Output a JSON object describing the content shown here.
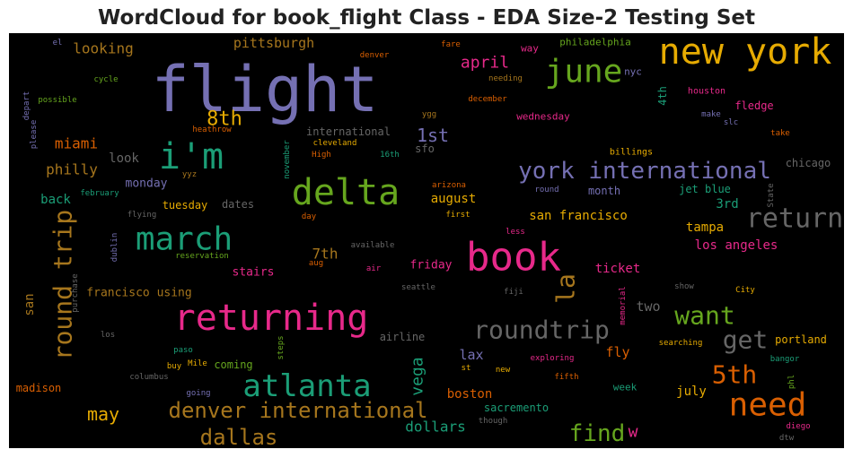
{
  "title": "WordCloud for book_flight Class - EDA Size-2 Testing Set",
  "words": [
    {
      "text": "flight",
      "color": "#7570b3"
    },
    {
      "text": "new york",
      "color": "#e6ab02"
    },
    {
      "text": "june",
      "color": "#66a61e"
    },
    {
      "text": "i'm",
      "color": "#1b9e77"
    },
    {
      "text": "8th",
      "color": "#e6ab02"
    },
    {
      "text": "delta",
      "color": "#66a61e"
    },
    {
      "text": "march",
      "color": "#1b9e77"
    },
    {
      "text": "york international",
      "color": "#7570b3"
    },
    {
      "text": "return",
      "color": "#666666"
    },
    {
      "text": "book",
      "color": "#e7298a"
    },
    {
      "text": "returning",
      "color": "#e7298a"
    },
    {
      "text": "roundtrip",
      "color": "#666666"
    },
    {
      "text": "want",
      "color": "#66a61e"
    },
    {
      "text": "get",
      "color": "#666666"
    },
    {
      "text": "atlanta",
      "color": "#1b9e77"
    },
    {
      "text": "5th",
      "color": "#d95f02"
    },
    {
      "text": "need",
      "color": "#d95f02"
    },
    {
      "text": "denver international",
      "color": "#a6761d"
    },
    {
      "text": "dallas",
      "color": "#a6761d"
    },
    {
      "text": "find",
      "color": "#66a61e"
    },
    {
      "text": "w",
      "color": "#e7298a"
    },
    {
      "text": "la",
      "color": "#a6761d"
    },
    {
      "text": "round trip",
      "color": "#a6761d"
    },
    {
      "text": "vega",
      "color": "#1b9e77"
    },
    {
      "text": "may",
      "color": "#e6ab02"
    },
    {
      "text": "1st",
      "color": "#7570b3"
    },
    {
      "text": "april",
      "color": "#e7298a"
    },
    {
      "text": "looking",
      "color": "#a6761d"
    },
    {
      "text": "pittsburgh",
      "color": "#a6761d"
    },
    {
      "text": "miami",
      "color": "#d95f02"
    },
    {
      "text": "philly",
      "color": "#a6761d"
    },
    {
      "text": "look",
      "color": "#666666"
    },
    {
      "text": "back",
      "color": "#1b9e77"
    },
    {
      "text": "monday",
      "color": "#7570b3"
    },
    {
      "text": "tuesday",
      "color": "#e6ab02"
    },
    {
      "text": "dates",
      "color": "#666666"
    },
    {
      "text": "international",
      "color": "#666666"
    },
    {
      "text": "cleveland",
      "color": "#e6ab02"
    },
    {
      "text": "sfo",
      "color": "#666666"
    },
    {
      "text": "august",
      "color": "#e6ab02"
    },
    {
      "text": "san francisco",
      "color": "#e6ab02"
    },
    {
      "text": "tampa",
      "color": "#e6ab02"
    },
    {
      "text": "3rd",
      "color": "#1b9e77"
    },
    {
      "text": "jet blue",
      "color": "#1b9e77"
    },
    {
      "text": "month",
      "color": "#7570b3"
    },
    {
      "text": "chicago",
      "color": "#666666"
    },
    {
      "text": "los angeles",
      "color": "#e7298a"
    },
    {
      "text": "7th",
      "color": "#a6761d"
    },
    {
      "text": "stairs",
      "color": "#e7298a"
    },
    {
      "text": "friday",
      "color": "#e7298a"
    },
    {
      "text": "ticket",
      "color": "#e7298a"
    },
    {
      "text": "two",
      "color": "#666666"
    },
    {
      "text": "francisco using",
      "color": "#a6761d"
    },
    {
      "text": "san",
      "color": "#a6761d"
    },
    {
      "text": "lax",
      "color": "#7570b3"
    },
    {
      "text": "fly",
      "color": "#d95f02"
    },
    {
      "text": "boston",
      "color": "#d95f02"
    },
    {
      "text": "dollars",
      "color": "#1b9e77"
    },
    {
      "text": "sacremento",
      "color": "#1b9e77"
    },
    {
      "text": "july",
      "color": "#e6ab02"
    },
    {
      "text": "week",
      "color": "#1b9e77"
    },
    {
      "text": "portland",
      "color": "#e6ab02"
    },
    {
      "text": "airline",
      "color": "#666666"
    },
    {
      "text": "coming",
      "color": "#66a61e"
    },
    {
      "text": "madison",
      "color": "#d95f02"
    },
    {
      "text": "philadelphia",
      "color": "#66a61e"
    },
    {
      "text": "way",
      "color": "#e7298a"
    },
    {
      "text": "nyc",
      "color": "#7570b3"
    },
    {
      "text": "wednesday",
      "color": "#e7298a"
    },
    {
      "text": "4th",
      "color": "#1b9e77"
    },
    {
      "text": "fledge",
      "color": "#e7298a"
    },
    {
      "text": "houston",
      "color": "#e7298a"
    },
    {
      "text": "billings",
      "color": "#e6ab02"
    },
    {
      "text": "fare",
      "color": "#d95f02"
    },
    {
      "text": "denver",
      "color": "#d95f02"
    },
    {
      "text": "december",
      "color": "#d95f02"
    },
    {
      "text": "needing",
      "color": "#a6761d"
    },
    {
      "text": "cycle",
      "color": "#66a61e"
    },
    {
      "text": "possible",
      "color": "#66a61e"
    },
    {
      "text": "depart",
      "color": "#7570b3"
    },
    {
      "text": "please",
      "color": "#7570b3"
    },
    {
      "text": "heathrow",
      "color": "#d95f02"
    },
    {
      "text": "november",
      "color": "#1b9e77"
    },
    {
      "text": "yyz",
      "color": "#a6761d"
    },
    {
      "text": "february",
      "color": "#1b9e77"
    },
    {
      "text": "flying",
      "color": "#666666"
    },
    {
      "text": "dublin",
      "color": "#7570b3"
    },
    {
      "text": "reservation",
      "color": "#66a61e"
    },
    {
      "text": "purchase",
      "color": "#666666"
    },
    {
      "text": "arizona",
      "color": "#d95f02"
    },
    {
      "text": "first",
      "color": "#e6ab02"
    },
    {
      "text": "day",
      "color": "#d95f02"
    },
    {
      "text": "available",
      "color": "#666666"
    },
    {
      "text": "aug",
      "color": "#d95f02"
    },
    {
      "text": "air",
      "color": "#e7298a"
    },
    {
      "text": "less",
      "color": "#e7298a"
    },
    {
      "text": "seattle",
      "color": "#666666"
    },
    {
      "text": "fiji",
      "color": "#666666"
    },
    {
      "text": "memorial",
      "color": "#e7298a"
    },
    {
      "text": "show",
      "color": "#666666"
    },
    {
      "text": "City",
      "color": "#e6ab02"
    },
    {
      "text": "searching",
      "color": "#e6ab02"
    },
    {
      "text": "bangor",
      "color": "#1b9e77"
    },
    {
      "text": "exploring",
      "color": "#e7298a"
    },
    {
      "text": "st",
      "color": "#e6ab02"
    },
    {
      "text": "new",
      "color": "#e6ab02"
    },
    {
      "text": "fifth",
      "color": "#d95f02"
    },
    {
      "text": "diego",
      "color": "#e7298a"
    },
    {
      "text": "dtw",
      "color": "#666666"
    },
    {
      "text": "phl",
      "color": "#66a61e"
    },
    {
      "text": "paso",
      "color": "#1b9e77"
    },
    {
      "text": "buy",
      "color": "#e6ab02"
    },
    {
      "text": "Mile",
      "color": "#e6ab02"
    },
    {
      "text": "columbus",
      "color": "#666666"
    },
    {
      "text": "going",
      "color": "#7570b3"
    },
    {
      "text": "los",
      "color": "#666666"
    },
    {
      "text": "steps",
      "color": "#66a61e"
    },
    {
      "text": "though",
      "color": "#666666"
    },
    {
      "text": "round",
      "color": "#7570b3"
    },
    {
      "text": "State",
      "color": "#666666"
    },
    {
      "text": "make",
      "color": "#7570b3"
    },
    {
      "text": "slc",
      "color": "#7570b3"
    },
    {
      "text": "take",
      "color": "#d95f02"
    },
    {
      "text": "ygg",
      "color": "#a6761d"
    },
    {
      "text": "High",
      "color": "#d95f02"
    },
    {
      "text": "16th",
      "color": "#1b9e77"
    },
    {
      "text": "el",
      "color": "#7570b3"
    }
  ]
}
